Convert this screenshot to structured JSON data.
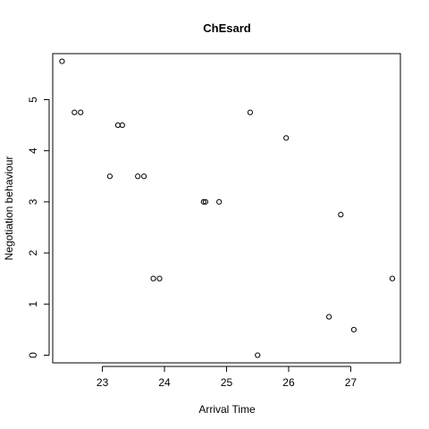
{
  "chart_data": {
    "type": "scatter",
    "title": "ChEsard",
    "xlabel": "Arrival Time",
    "ylabel": "Negotiation behaviour",
    "xlim": [
      22.2,
      27.8
    ],
    "ylim": [
      -0.15,
      5.9
    ],
    "xticks": [
      23,
      24,
      25,
      26,
      27
    ],
    "yticks": [
      0,
      1,
      2,
      3,
      4,
      5
    ],
    "grid": false,
    "legend": "none",
    "points": [
      {
        "x": 22.35,
        "y": 5.75
      },
      {
        "x": 22.55,
        "y": 4.75
      },
      {
        "x": 22.65,
        "y": 4.75
      },
      {
        "x": 23.25,
        "y": 4.5
      },
      {
        "x": 23.32,
        "y": 4.5
      },
      {
        "x": 23.12,
        "y": 3.5
      },
      {
        "x": 23.57,
        "y": 3.5
      },
      {
        "x": 23.67,
        "y": 3.5
      },
      {
        "x": 23.82,
        "y": 1.5
      },
      {
        "x": 23.92,
        "y": 1.5
      },
      {
        "x": 24.63,
        "y": 3.0
      },
      {
        "x": 24.66,
        "y": 3.0
      },
      {
        "x": 24.88,
        "y": 3.0
      },
      {
        "x": 25.38,
        "y": 4.75
      },
      {
        "x": 25.5,
        "y": 0.0
      },
      {
        "x": 25.96,
        "y": 4.25
      },
      {
        "x": 26.65,
        "y": 0.75
      },
      {
        "x": 26.84,
        "y": 2.75
      },
      {
        "x": 27.05,
        "y": 0.5
      },
      {
        "x": 27.67,
        "y": 1.5
      }
    ]
  }
}
